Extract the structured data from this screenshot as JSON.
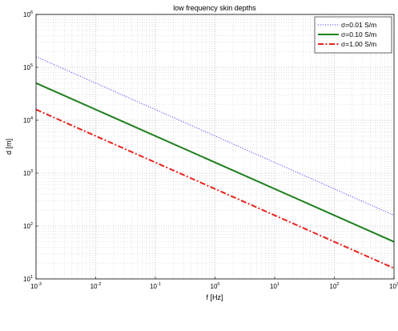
{
  "chart_data": {
    "type": "line",
    "title": "low frequency skin depths",
    "xlabel": "f [Hz]",
    "ylabel": "d [m]",
    "xscale": "log",
    "yscale": "log",
    "xlim": [
      0.001,
      1000
    ],
    "ylim": [
      10,
      1000000
    ],
    "grid": true,
    "legend_position": "top-right",
    "x_ticks": [
      {
        "value": 0.001,
        "base": "10",
        "exp": "-3"
      },
      {
        "value": 0.01,
        "base": "10",
        "exp": "-2"
      },
      {
        "value": 0.1,
        "base": "10",
        "exp": "-1"
      },
      {
        "value": 1,
        "base": "10",
        "exp": "0"
      },
      {
        "value": 10,
        "base": "10",
        "exp": "1"
      },
      {
        "value": 100,
        "base": "10",
        "exp": "2"
      },
      {
        "value": 1000,
        "base": "10",
        "exp": "3"
      }
    ],
    "y_ticks": [
      {
        "value": 10,
        "base": "10",
        "exp": "1"
      },
      {
        "value": 100,
        "base": "10",
        "exp": "2"
      },
      {
        "value": 1000,
        "base": "10",
        "exp": "3"
      },
      {
        "value": 10000,
        "base": "10",
        "exp": "4"
      },
      {
        "value": 100000,
        "base": "10",
        "exp": "5"
      },
      {
        "value": 1000000,
        "base": "10",
        "exp": "6"
      }
    ],
    "series": [
      {
        "name": "σ=0.01 S/m",
        "color": "#4a4aff",
        "style": "dotted",
        "x": [
          0.001,
          1000
        ],
        "y": [
          159155,
          159.155
        ]
      },
      {
        "name": "σ=0.10 S/m",
        "color": "#1e7f1e",
        "style": "solid",
        "x": [
          0.001,
          1000
        ],
        "y": [
          50329,
          50.329
        ]
      },
      {
        "name": "σ=1.00 S/m",
        "color": "#e8221c",
        "style": "dashdot",
        "x": [
          0.001,
          1000
        ],
        "y": [
          15915.5,
          15.9155
        ]
      }
    ]
  }
}
